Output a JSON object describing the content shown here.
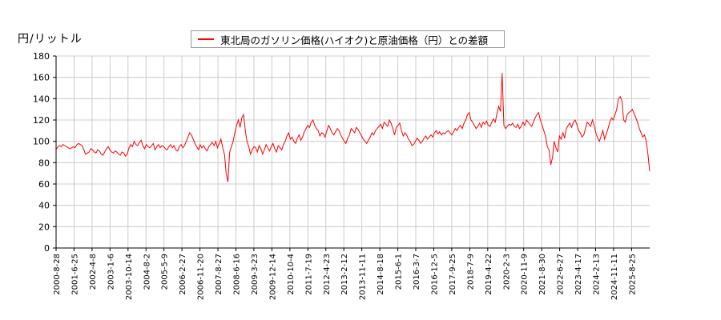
{
  "chart_data": {
    "type": "line",
    "title": "",
    "ylabel": "円/リットル",
    "xlabel": "",
    "ylim": [
      0,
      180
    ],
    "yticks": [
      0,
      20,
      40,
      60,
      80,
      100,
      120,
      140,
      160,
      180
    ],
    "grid": true,
    "legend_position": "top-center",
    "xtick_labels": [
      "2000-8-28",
      "2001-6-25",
      "2002-4-8",
      "2003-1-6",
      "2003-10-14",
      "2004-8-2",
      "2005-5-9",
      "2006-2-27",
      "2006-11-20",
      "2007-8-27",
      "2008-6-16",
      "2009-3-23",
      "2009-12-14",
      "2010-10-4",
      "2011-7-19",
      "2012-4-23",
      "2013-2-12",
      "2013-11-11",
      "2014-8-18",
      "2015-6-1",
      "2016-3-7",
      "2016-12-5",
      "2017-9-25",
      "2018-7-9",
      "2019-4-22",
      "2020-2-3",
      "2020-11-9",
      "2021-8-30",
      "2022-6-27",
      "2023-4-17",
      "2024-2-13",
      "2024-11-11",
      "2025-8-25"
    ],
    "series": [
      {
        "name": "東北局のガソリン価格(ハイオク)と原油価格（円）との差額",
        "color": "#ff0000",
        "x_index_note": "values sampled approximately every ~1.2 months from 2000-8-28 to 2025-11",
        "values": [
          92,
          95,
          96,
          95,
          97,
          96,
          95,
          94,
          93,
          94,
          95,
          94,
          97,
          98,
          97,
          96,
          92,
          88,
          89,
          90,
          93,
          92,
          90,
          89,
          92,
          91,
          88,
          87,
          90,
          93,
          95,
          92,
          90,
          89,
          91,
          90,
          88,
          87,
          90,
          89,
          86,
          88,
          94,
          97,
          95,
          100,
          97,
          96,
          99,
          101,
          96,
          93,
          97,
          95,
          94,
          96,
          98,
          92,
          95,
          97,
          94,
          96,
          95,
          93,
          92,
          95,
          97,
          94,
          96,
          92,
          91,
          95,
          97,
          94,
          96,
          100,
          104,
          108,
          106,
          102,
          98,
          95,
          92,
          97,
          94,
          96,
          93,
          91,
          95,
          97,
          99,
          96,
          100,
          94,
          98,
          102,
          94,
          88,
          70,
          62,
          90,
          95,
          100,
          108,
          115,
          120,
          113,
          122,
          125,
          110,
          100,
          95,
          88,
          92,
          95,
          94,
          90,
          96,
          93,
          88,
          92,
          97,
          94,
          91,
          95,
          98,
          93,
          90,
          96,
          94,
          92,
          97,
          100,
          105,
          108,
          102,
          104,
          100,
          98,
          103,
          106,
          101,
          104,
          109,
          112,
          115,
          113,
          118,
          120,
          115,
          112,
          110,
          105,
          108,
          107,
          104,
          110,
          115,
          112,
          108,
          106,
          109,
          112,
          110,
          106,
          103,
          100,
          98,
          103,
          106,
          112,
          110,
          108,
          113,
          111,
          108,
          105,
          102,
          100,
          98,
          101,
          104,
          108,
          106,
          110,
          112,
          114,
          116,
          112,
          118,
          116,
          114,
          120,
          117,
          112,
          106,
          113,
          115,
          117,
          110,
          105,
          108,
          106,
          102,
          100,
          96,
          97,
          100,
          103,
          101,
          98,
          100,
          103,
          105,
          102,
          104,
          106,
          104,
          108,
          110,
          107,
          109,
          106,
          108,
          107,
          109,
          110,
          108,
          106,
          109,
          112,
          110,
          113,
          115,
          112,
          117,
          120,
          125,
          127,
          120,
          118,
          115,
          112,
          114,
          117,
          113,
          118,
          116,
          119,
          115,
          114,
          118,
          121,
          118,
          126,
          133,
          128,
          164,
          115,
          112,
          114,
          116,
          115,
          117,
          114,
          113,
          116,
          112,
          114,
          118,
          115,
          120,
          118,
          116,
          114,
          118,
          122,
          125,
          127,
          120,
          115,
          110,
          105,
          95,
          92,
          78,
          85,
          100,
          94,
          90,
          105,
          102,
          108,
          103,
          112,
          115,
          117,
          113,
          118,
          120,
          116,
          110,
          108,
          104,
          106,
          112,
          118,
          116,
          114,
          120,
          115,
          108,
          103,
          100,
          105,
          110,
          102,
          107,
          112,
          118,
          122,
          120,
          125,
          130,
          140,
          142,
          138,
          120,
          118,
          125,
          127,
          128,
          130,
          126,
          122,
          118,
          112,
          108,
          104,
          106,
          100,
          88,
          72
        ]
      }
    ]
  },
  "axis": {
    "y_unit_label": "円/リットル"
  },
  "legend": {
    "label": "東北局のガソリン価格(ハイオク)と原油価格（円）との差額"
  }
}
